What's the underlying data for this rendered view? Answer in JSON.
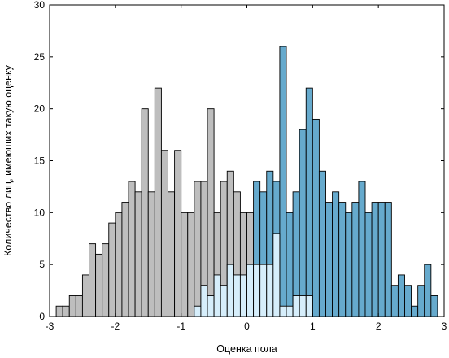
{
  "chart_data": {
    "type": "bar",
    "title": "",
    "xlabel": "Оценка пола",
    "ylabel": "Количество лиц, имеющих такую оценку",
    "xlim": [
      -3,
      3
    ],
    "ylim": [
      0,
      30
    ],
    "xticks": [
      -3,
      -2,
      -1,
      0,
      1,
      2,
      3
    ],
    "xtick_labels": [
      "-3",
      "-2",
      "-1",
      "0",
      "1",
      "2",
      "3"
    ],
    "yticks": [
      0,
      5,
      10,
      15,
      20,
      25,
      30
    ],
    "ytick_labels": [
      "0",
      "5",
      "10",
      "15",
      "20",
      "25",
      "30"
    ],
    "bin_width": 0.1,
    "grid": false,
    "colors": {
      "gray_total": "#bebebe",
      "blue_total": "#66aacd",
      "light_overlap": "#d6eefb",
      "edge": "#000000"
    },
    "series": [
      {
        "color_key": "gray_total",
        "bins": [
          [
            -2.9,
            1
          ],
          [
            -2.8,
            1
          ],
          [
            -2.7,
            2
          ],
          [
            -2.6,
            2
          ],
          [
            -2.5,
            4
          ],
          [
            -2.4,
            7
          ],
          [
            -2.3,
            6
          ],
          [
            -2.2,
            7
          ],
          [
            -2.1,
            9
          ],
          [
            -2.0,
            10
          ],
          [
            -1.9,
            11
          ],
          [
            -1.8,
            13
          ],
          [
            -1.7,
            12
          ],
          [
            -1.6,
            20
          ],
          [
            -1.5,
            12
          ],
          [
            -1.4,
            22
          ],
          [
            -1.3,
            16
          ],
          [
            -1.2,
            12
          ],
          [
            -1.1,
            16
          ],
          [
            -1.0,
            10
          ],
          [
            -0.9,
            10
          ],
          [
            -0.8,
            13
          ],
          [
            -0.7,
            13
          ],
          [
            -0.6,
            20
          ],
          [
            -0.5,
            10
          ],
          [
            -0.4,
            13
          ],
          [
            -0.3,
            14
          ],
          [
            -0.2,
            12
          ],
          [
            -0.1,
            10
          ],
          [
            0.0,
            10
          ]
        ]
      },
      {
        "color_key": "blue_total",
        "bins": [
          [
            0.1,
            13
          ],
          [
            0.2,
            12
          ],
          [
            0.3,
            14
          ],
          [
            0.4,
            13
          ],
          [
            0.5,
            26
          ],
          [
            0.6,
            10
          ],
          [
            0.7,
            12
          ],
          [
            0.8,
            18
          ],
          [
            0.9,
            22
          ],
          [
            1.0,
            19
          ],
          [
            1.1,
            14
          ],
          [
            1.2,
            11
          ],
          [
            1.3,
            12
          ],
          [
            1.4,
            11
          ],
          [
            1.5,
            10
          ],
          [
            1.6,
            11
          ],
          [
            1.7,
            13
          ],
          [
            1.8,
            10
          ],
          [
            1.9,
            11
          ],
          [
            2.0,
            11
          ],
          [
            2.1,
            11
          ],
          [
            2.2,
            3
          ],
          [
            2.3,
            4
          ],
          [
            2.4,
            3
          ],
          [
            2.5,
            1
          ],
          [
            2.6,
            3
          ],
          [
            2.7,
            5
          ],
          [
            2.8,
            2
          ]
        ]
      },
      {
        "color_key": "light_overlap",
        "bins": [
          [
            -0.8,
            1
          ],
          [
            -0.7,
            3
          ],
          [
            -0.6,
            2
          ],
          [
            -0.5,
            4
          ],
          [
            -0.4,
            3
          ],
          [
            -0.3,
            5
          ],
          [
            -0.2,
            4
          ],
          [
            -0.1,
            4
          ],
          [
            0.0,
            5
          ],
          [
            0.1,
            5
          ],
          [
            0.2,
            5
          ],
          [
            0.3,
            5
          ],
          [
            0.4,
            8
          ],
          [
            0.5,
            1
          ],
          [
            0.6,
            1
          ],
          [
            0.7,
            2
          ],
          [
            0.8,
            2
          ],
          [
            0.9,
            2
          ]
        ]
      }
    ]
  }
}
